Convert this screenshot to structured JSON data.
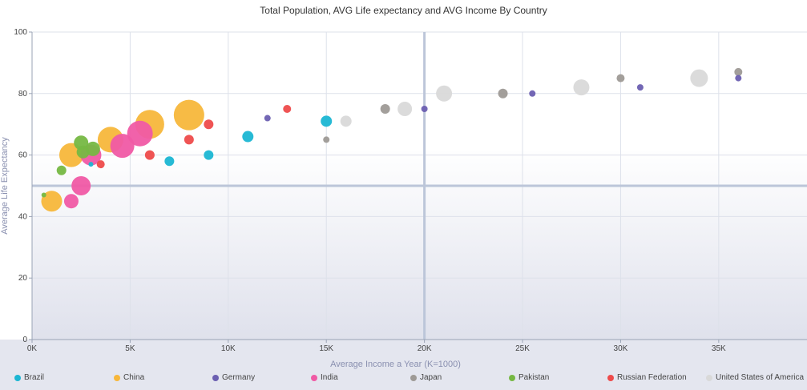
{
  "chart_data": {
    "type": "scatter",
    "title": "Total Population, AVG Life expectancy and AVG Income By Country",
    "xlabel": "Average Income a Year  (K=1000)",
    "ylabel": "Average Life Expectancy",
    "xlim": [
      0,
      39500
    ],
    "ylim": [
      0,
      100
    ],
    "xticks": [
      0,
      5000,
      10000,
      15000,
      20000,
      25000,
      30000,
      35000
    ],
    "xtick_labels": [
      "0K",
      "5K",
      "10K",
      "15K",
      "20K",
      "25K",
      "30K",
      "35K"
    ],
    "yticks": [
      0,
      20,
      40,
      60,
      80,
      100
    ],
    "ytick_labels": [
      "0",
      "20",
      "40",
      "60",
      "80",
      "100"
    ],
    "grid": true,
    "legend_position": "bottom",
    "crosshair": {
      "x": 20000,
      "y": 50
    },
    "series": [
      {
        "name": "Brazil",
        "color": "#1bb6d3",
        "points": [
          {
            "x": 3000,
            "y": 57,
            "size": 3
          },
          {
            "x": 7000,
            "y": 58,
            "size": 6
          },
          {
            "x": 9000,
            "y": 60,
            "size": 6
          },
          {
            "x": 11000,
            "y": 66,
            "size": 7
          },
          {
            "x": 15000,
            "y": 71,
            "size": 7
          }
        ]
      },
      {
        "name": "China",
        "color": "#f7b73b",
        "points": [
          {
            "x": 1000,
            "y": 45,
            "size": 13
          },
          {
            "x": 2000,
            "y": 60,
            "size": 15
          },
          {
            "x": 4000,
            "y": 65,
            "size": 16
          },
          {
            "x": 6000,
            "y": 70,
            "size": 18
          },
          {
            "x": 8000,
            "y": 73,
            "size": 19
          }
        ]
      },
      {
        "name": "Germany",
        "color": "#6b5fb1",
        "points": [
          {
            "x": 12000,
            "y": 72,
            "size": 4
          },
          {
            "x": 20000,
            "y": 75,
            "size": 4
          },
          {
            "x": 25500,
            "y": 80,
            "size": 4
          },
          {
            "x": 31000,
            "y": 82,
            "size": 4
          },
          {
            "x": 36000,
            "y": 85,
            "size": 4
          }
        ]
      },
      {
        "name": "India",
        "color": "#f05aa5",
        "points": [
          {
            "x": 2000,
            "y": 45,
            "size": 9
          },
          {
            "x": 2500,
            "y": 50,
            "size": 12
          },
          {
            "x": 3000,
            "y": 60,
            "size": 13
          },
          {
            "x": 4600,
            "y": 63,
            "size": 15
          },
          {
            "x": 5500,
            "y": 67,
            "size": 16
          }
        ]
      },
      {
        "name": "Japan",
        "color": "#9e9a96",
        "points": [
          {
            "x": 15000,
            "y": 65,
            "size": 4
          },
          {
            "x": 18000,
            "y": 75,
            "size": 6
          },
          {
            "x": 24000,
            "y": 80,
            "size": 6
          },
          {
            "x": 30000,
            "y": 85,
            "size": 5
          },
          {
            "x": 36000,
            "y": 87,
            "size": 5
          }
        ]
      },
      {
        "name": "Pakistan",
        "color": "#76b843",
        "points": [
          {
            "x": 600,
            "y": 47,
            "size": 3
          },
          {
            "x": 1500,
            "y": 55,
            "size": 6
          },
          {
            "x": 2500,
            "y": 64,
            "size": 9
          },
          {
            "x": 2600,
            "y": 61,
            "size": 8
          },
          {
            "x": 3100,
            "y": 62,
            "size": 9
          }
        ]
      },
      {
        "name": "Russian Federation",
        "color": "#ee4b4b",
        "points": [
          {
            "x": 3500,
            "y": 57,
            "size": 5
          },
          {
            "x": 6000,
            "y": 60,
            "size": 6
          },
          {
            "x": 8000,
            "y": 65,
            "size": 6
          },
          {
            "x": 9000,
            "y": 70,
            "size": 6
          },
          {
            "x": 13000,
            "y": 75,
            "size": 5
          }
        ]
      },
      {
        "name": "United States of America",
        "color": "#d9d9d9",
        "points": [
          {
            "x": 16000,
            "y": 71,
            "size": 7
          },
          {
            "x": 19000,
            "y": 75,
            "size": 9
          },
          {
            "x": 21000,
            "y": 80,
            "size": 10
          },
          {
            "x": 28000,
            "y": 82,
            "size": 10
          },
          {
            "x": 34000,
            "y": 85,
            "size": 11
          }
        ]
      }
    ]
  }
}
